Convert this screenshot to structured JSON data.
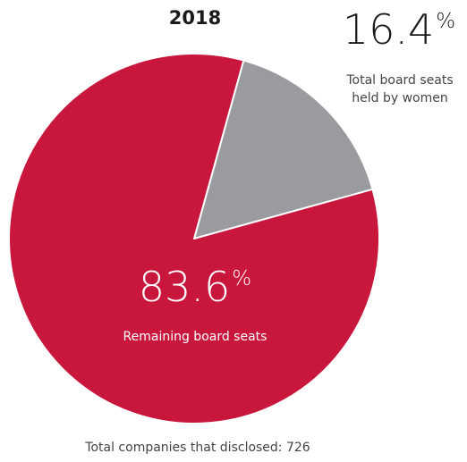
{
  "chart_data": {
    "type": "pie",
    "title": "2018",
    "slices": [
      {
        "label": "Total board seats held by women",
        "value": 16.4,
        "color": "#999b9e"
      },
      {
        "label": "Remaining board seats",
        "value": 83.6,
        "color": "#c8163c"
      }
    ],
    "footer": "Total companies that disclosed: 726"
  },
  "labels": {
    "women_value": "16.4",
    "women_line1": "Total board seats",
    "women_line2": "held by women",
    "remaining_value": "83.6",
    "remaining_text": "Remaining board seats",
    "percent_sign": "%"
  }
}
